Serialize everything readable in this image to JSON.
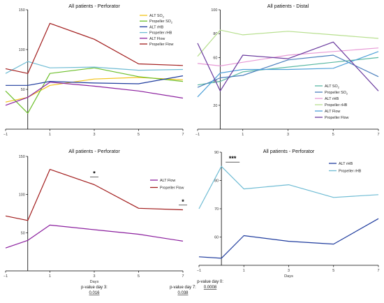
{
  "chart_data": [
    {
      "type": "line",
      "title": "All patients - Perforator",
      "xlabel": "",
      "ylabel": "",
      "x": [
        -1,
        0,
        1,
        3,
        5,
        7
      ],
      "x_ticks": [
        "-1",
        "1",
        "3",
        "5",
        "7"
      ],
      "y_ticks": [
        "50",
        "100",
        "150"
      ],
      "ylim": [
        0,
        150
      ],
      "xlim": [
        -1,
        7
      ],
      "legend": "top-right",
      "series": [
        {
          "name": "ALT SO2",
          "label_main": "ALT SO",
          "label_sub": "2",
          "color": "#f2c318",
          "values": [
            34,
            40,
            55,
            63,
            65,
            62
          ]
        },
        {
          "name": "Propeller SO2",
          "label_main": "Propeller SO",
          "label_sub": "2",
          "color": "#6cbf2a",
          "values": [
            48,
            20,
            70,
            77,
            66,
            60
          ]
        },
        {
          "name": "ALT rHB",
          "label_main": "ALT rHB",
          "label_sub": "",
          "color": "#1f3c9e",
          "values": [
            55,
            55,
            60,
            58,
            57,
            67
          ]
        },
        {
          "name": "Propeller rHB",
          "label_main": "Propeller rHB",
          "label_sub": "",
          "color": "#6fbcd4",
          "values": [
            70,
            85,
            77,
            78,
            74,
            75
          ]
        },
        {
          "name": "ALT Flow",
          "label_main": "ALT Flow",
          "label_sub": "",
          "color": "#8b1f9e",
          "values": [
            30,
            40,
            59,
            54,
            48,
            39
          ]
        },
        {
          "name": "Propeller Flow",
          "label_main": "Propeller Flow",
          "label_sub": "",
          "color": "#a21d1d",
          "values": [
            76,
            70,
            133,
            113,
            82,
            80
          ]
        }
      ]
    },
    {
      "type": "line",
      "title": "All patients - Distal",
      "xlabel": "",
      "ylabel": "",
      "x": [
        -1,
        0,
        1,
        3,
        5,
        7
      ],
      "x_ticks": [
        "-1",
        "1",
        "3",
        "5",
        "7"
      ],
      "y_ticks": [
        "20",
        "40",
        "60",
        "80",
        "100"
      ],
      "ylim": [
        0,
        100
      ],
      "xlim": [
        -1,
        7
      ],
      "legend": "bottom-right",
      "series": [
        {
          "name": "ALT SO2",
          "label_main": "ALT SO",
          "label_sub": "2",
          "color": "#59b8a3",
          "values": [
            37,
            40,
            48,
            52,
            56,
            60
          ]
        },
        {
          "name": "Propeller SO2",
          "label_main": "Propeller SO",
          "label_sub": "2",
          "color": "#4a7fbd",
          "values": [
            35,
            43,
            45,
            58,
            62,
            44
          ]
        },
        {
          "name": "ALT rHB",
          "label_main": "ALT rHB",
          "label_sub": "",
          "color": "#e79ad6",
          "values": [
            55,
            53,
            56,
            62,
            65,
            68
          ]
        },
        {
          "name": "Propeller rHB",
          "label_main": "Propeller rHB",
          "label_sub": "",
          "color": "#b7df8e",
          "values": [
            61,
            83,
            79,
            82,
            79,
            76
          ]
        },
        {
          "name": "ALT Flow",
          "label_main": "ALT Flow",
          "label_sub": "",
          "color": "#4ea0d8",
          "values": [
            27,
            47,
            50,
            50,
            51,
            65
          ]
        },
        {
          "name": "Propeller Flow",
          "label_main": "Propeller Flow",
          "label_sub": "",
          "color": "#6a3a9e",
          "values": [
            72,
            32,
            62,
            59,
            73,
            32
          ]
        }
      ]
    },
    {
      "type": "line",
      "title": "All patients - Perforator",
      "xlabel": "Days",
      "ylabel": "",
      "x": [
        -1,
        0,
        1,
        3,
        5,
        7
      ],
      "x_ticks": [
        "-1",
        "1",
        "3",
        "5",
        "7"
      ],
      "y_ticks": [
        "50",
        "100",
        "150"
      ],
      "ylim": [
        0,
        150
      ],
      "xlim": [
        -1,
        7
      ],
      "legend": "top-right",
      "series": [
        {
          "name": "ALT Flow",
          "label_main": "ALT Flow",
          "label_sub": "",
          "color": "#8b1f9e",
          "values": [
            30,
            40,
            60,
            54,
            48,
            39
          ]
        },
        {
          "name": "Propeller Flow",
          "label_main": "Propeller Flow",
          "label_sub": "",
          "color": "#a21d1d",
          "values": [
            72,
            66,
            133,
            113,
            82,
            80
          ]
        }
      ],
      "annotations": [
        {
          "text": "*",
          "x": 3,
          "y": 125
        },
        {
          "text": "*",
          "x": 7,
          "y": 88
        }
      ],
      "notes": [
        {
          "label": "p-value day 3:",
          "value": "0.016",
          "x": 3
        },
        {
          "label": "p-value day 7:",
          "value": "0.038",
          "x": 7
        }
      ]
    },
    {
      "type": "line",
      "title": "All patients - Perforator",
      "xlabel": "Days",
      "ylabel": "",
      "x": [
        -1,
        0,
        1,
        3,
        5,
        7
      ],
      "x_ticks": [
        "-1",
        "1",
        "3",
        "5",
        "7"
      ],
      "y_ticks": [
        "60",
        "70",
        "80",
        "90"
      ],
      "ylim": [
        50,
        90
      ],
      "xlim": [
        -1,
        7
      ],
      "legend": "top-right",
      "series": [
        {
          "name": "ALT rHB",
          "label_main": "ALT rHB",
          "label_sub": "",
          "color": "#1f3c9e",
          "values": [
            53,
            52.5,
            60.5,
            58.5,
            57.5,
            66.5
          ]
        },
        {
          "name": "Propeller rHB",
          "label_main": "Propeller rHB",
          "label_sub": "",
          "color": "#6fbcd4",
          "values": [
            70,
            85,
            77,
            78.5,
            74,
            75
          ]
        }
      ],
      "annotations": [
        {
          "text": "***",
          "x": 0.5,
          "y": 87
        }
      ],
      "notes": [
        {
          "label": "p-value day 0:",
          "value": "0.0008",
          "x": -0.5
        }
      ]
    }
  ]
}
